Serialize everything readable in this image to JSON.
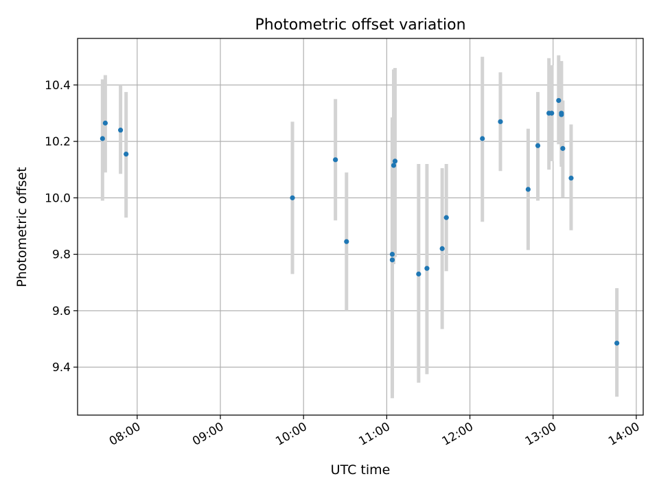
{
  "chart_data": {
    "type": "scatter",
    "title": "Photometric offset variation",
    "xlabel": "UTC time",
    "ylabel": "Photometric offset",
    "x_ticks": [
      "08:00",
      "09:00",
      "10:00",
      "11:00",
      "12:00",
      "13:00",
      "14:00"
    ],
    "y_ticks": [
      "9.4",
      "9.6",
      "9.8",
      "10.0",
      "10.2",
      "10.4"
    ],
    "xlim": [
      "07:17",
      "14:05"
    ],
    "ylim": [
      9.23,
      10.565
    ],
    "grid": true,
    "legend": "none",
    "marker_color": "#1f77b4",
    "errorbar_color": "#d3d3d3",
    "series": [
      {
        "points": [
          {
            "x": "07:35",
            "y": 10.21,
            "yerr_low": 9.99,
            "yerr_high": 10.42
          },
          {
            "x": "07:37",
            "y": 10.265,
            "yerr_low": 10.09,
            "yerr_high": 10.435
          },
          {
            "x": "07:48",
            "y": 10.24,
            "yerr_low": 10.085,
            "yerr_high": 10.4
          },
          {
            "x": "07:52",
            "y": 10.155,
            "yerr_low": 9.93,
            "yerr_high": 10.375
          },
          {
            "x": "09:52",
            "y": 10.0,
            "yerr_low": 9.73,
            "yerr_high": 10.27
          },
          {
            "x": "10:23",
            "y": 10.135,
            "yerr_low": 9.92,
            "yerr_high": 10.35
          },
          {
            "x": "10:31",
            "y": 9.845,
            "yerr_low": 9.6,
            "yerr_high": 10.09
          },
          {
            "x": "11:04",
            "y": 9.8,
            "yerr_low": 9.29,
            "yerr_high": 10.285
          },
          {
            "x": "11:04",
            "y": 9.78,
            "yerr_low": 9.31,
            "yerr_high": 10.26
          },
          {
            "x": "11:05",
            "y": 10.115,
            "yerr_low": 9.765,
            "yerr_high": 10.455
          },
          {
            "x": "11:06",
            "y": 10.13,
            "yerr_low": 9.79,
            "yerr_high": 10.46
          },
          {
            "x": "11:23",
            "y": 9.73,
            "yerr_low": 9.345,
            "yerr_high": 10.12
          },
          {
            "x": "11:29",
            "y": 9.75,
            "yerr_low": 9.375,
            "yerr_high": 10.12
          },
          {
            "x": "11:40",
            "y": 9.82,
            "yerr_low": 9.535,
            "yerr_high": 10.105
          },
          {
            "x": "11:43",
            "y": 9.93,
            "yerr_low": 9.74,
            "yerr_high": 10.12
          },
          {
            "x": "12:09",
            "y": 10.21,
            "yerr_low": 9.915,
            "yerr_high": 10.5
          },
          {
            "x": "12:22",
            "y": 10.27,
            "yerr_low": 10.095,
            "yerr_high": 10.445
          },
          {
            "x": "12:42",
            "y": 10.03,
            "yerr_low": 9.815,
            "yerr_high": 10.245
          },
          {
            "x": "12:49",
            "y": 10.185,
            "yerr_low": 9.99,
            "yerr_high": 10.375
          },
          {
            "x": "12:57",
            "y": 10.3,
            "yerr_low": 10.1,
            "yerr_high": 10.495
          },
          {
            "x": "12:59",
            "y": 10.3,
            "yerr_low": 10.13,
            "yerr_high": 10.47
          },
          {
            "x": "13:04",
            "y": 10.345,
            "yerr_low": 10.19,
            "yerr_high": 10.505
          },
          {
            "x": "13:06",
            "y": 10.3,
            "yerr_low": 10.12,
            "yerr_high": 10.485
          },
          {
            "x": "13:06",
            "y": 10.295,
            "yerr_low": 10.11,
            "yerr_high": 10.48
          },
          {
            "x": "13:07",
            "y": 10.175,
            "yerr_low": 10.0,
            "yerr_high": 10.345
          },
          {
            "x": "13:13",
            "y": 10.07,
            "yerr_low": 9.885,
            "yerr_high": 10.26
          },
          {
            "x": "13:46",
            "y": 9.485,
            "yerr_low": 9.295,
            "yerr_high": 9.68
          }
        ]
      }
    ]
  }
}
